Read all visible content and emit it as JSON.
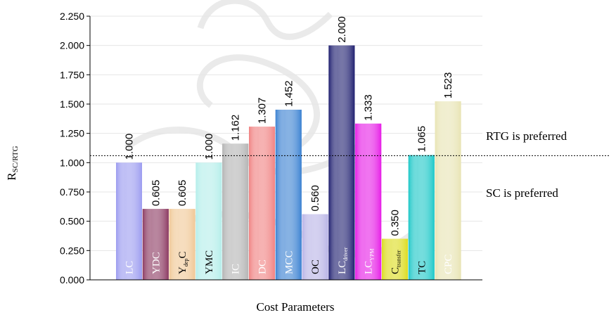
{
  "chart_data": {
    "type": "bar",
    "xlabel": "Cost Parameters",
    "ylabel": "R",
    "ylabel_sub": "SC/RTG",
    "ylim": [
      0,
      2.25
    ],
    "yticks": [
      "0.000",
      "0.250",
      "0.500",
      "0.750",
      "1.000",
      "1.250",
      "1.500",
      "1.750",
      "2.000",
      "2.250"
    ],
    "grid": true,
    "threshold": 1.06,
    "categories": [
      {
        "main": "LC",
        "sub": ""
      },
      {
        "main": "YDC",
        "sub": ""
      },
      {
        "main": "Y",
        "sub": "dep",
        "tail": "C"
      },
      {
        "main": "YMC",
        "sub": ""
      },
      {
        "main": "IC",
        "sub": ""
      },
      {
        "main": "DC",
        "sub": ""
      },
      {
        "main": "MCC",
        "sub": ""
      },
      {
        "main": "OC",
        "sub": ""
      },
      {
        "main": "LC",
        "sub": "driver"
      },
      {
        "main": "LC",
        "sub": "YPM"
      },
      {
        "main": "C",
        "sub": "transfer"
      },
      {
        "main": "TC",
        "sub": ""
      },
      {
        "main": "CPC",
        "sub": ""
      }
    ],
    "values": [
      1.0,
      0.605,
      0.605,
      1.0,
      1.162,
      1.307,
      1.452,
      0.56,
      2.0,
      1.333,
      0.35,
      1.065,
      1.523
    ],
    "value_labels": [
      "1.000",
      "0.605",
      "0.605",
      "1.000",
      "1.162",
      "1.307",
      "1.452",
      "0.560",
      "2.000",
      "1.333",
      "0.350",
      "1.065",
      "1.523"
    ],
    "colors": [
      "#9c9cf0",
      "#8c3a62",
      "#f0c896",
      "#b4eeea",
      "#b4b4b4",
      "#f08282",
      "#3c82d2",
      "#b9b4e6",
      "#202070",
      "#e61ee6",
      "#dcdc1e",
      "#1ec8c8",
      "#e8e4b4"
    ],
    "label_colors": [
      "#ffffff",
      "#ffffff",
      "#000000",
      "#000000",
      "#ffffff",
      "#ffffff",
      "#ffffff",
      "#000000",
      "#ffffff",
      "#ffffff",
      "#000000",
      "#000000",
      "#ffffff"
    ],
    "annotations": {
      "above": "RTG is preferred",
      "below": "SC is preferred"
    }
  }
}
